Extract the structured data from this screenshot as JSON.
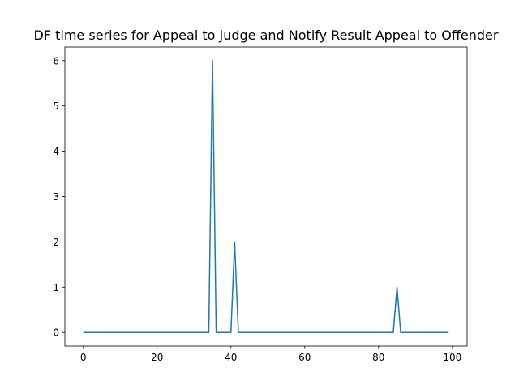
{
  "chart_data": {
    "type": "line",
    "title": "DF time series for Appeal to Judge and Notify Result Appeal to Offender",
    "xlabel": "",
    "ylabel": "",
    "xlim": [
      -5,
      104
    ],
    "ylim": [
      -0.3,
      6.3
    ],
    "x_ticks": [
      0,
      20,
      40,
      60,
      80,
      100
    ],
    "y_ticks": [
      0,
      1,
      2,
      3,
      4,
      5,
      6
    ],
    "grid": false,
    "line_color": "#1f77b4",
    "x": [
      0,
      1,
      2,
      3,
      4,
      5,
      6,
      7,
      8,
      9,
      10,
      11,
      12,
      13,
      14,
      15,
      16,
      17,
      18,
      19,
      20,
      21,
      22,
      23,
      24,
      25,
      26,
      27,
      28,
      29,
      30,
      31,
      32,
      33,
      34,
      35,
      36,
      37,
      38,
      39,
      40,
      41,
      42,
      43,
      44,
      45,
      46,
      47,
      48,
      49,
      50,
      51,
      52,
      53,
      54,
      55,
      56,
      57,
      58,
      59,
      60,
      61,
      62,
      63,
      64,
      65,
      66,
      67,
      68,
      69,
      70,
      71,
      72,
      73,
      74,
      75,
      76,
      77,
      78,
      79,
      80,
      81,
      82,
      83,
      84,
      85,
      86,
      87,
      88,
      89,
      90,
      91,
      92,
      93,
      94,
      95,
      96,
      97,
      98,
      99
    ],
    "values": [
      0,
      0,
      0,
      0,
      0,
      0,
      0,
      0,
      0,
      0,
      0,
      0,
      0,
      0,
      0,
      0,
      0,
      0,
      0,
      0,
      0,
      0,
      0,
      0,
      0,
      0,
      0,
      0,
      0,
      0,
      0,
      0,
      0,
      0,
      0,
      6,
      0,
      0,
      0,
      0,
      0,
      2,
      0,
      0,
      0,
      0,
      0,
      0,
      0,
      0,
      0,
      0,
      0,
      0,
      0,
      0,
      0,
      0,
      0,
      0,
      0,
      0,
      0,
      0,
      0,
      0,
      0,
      0,
      0,
      0,
      0,
      0,
      0,
      0,
      0,
      0,
      0,
      0,
      0,
      0,
      0,
      0,
      0,
      0,
      0,
      1,
      0,
      0,
      0,
      0,
      0,
      0,
      0,
      0,
      0,
      0,
      0,
      0,
      0,
      0
    ]
  }
}
